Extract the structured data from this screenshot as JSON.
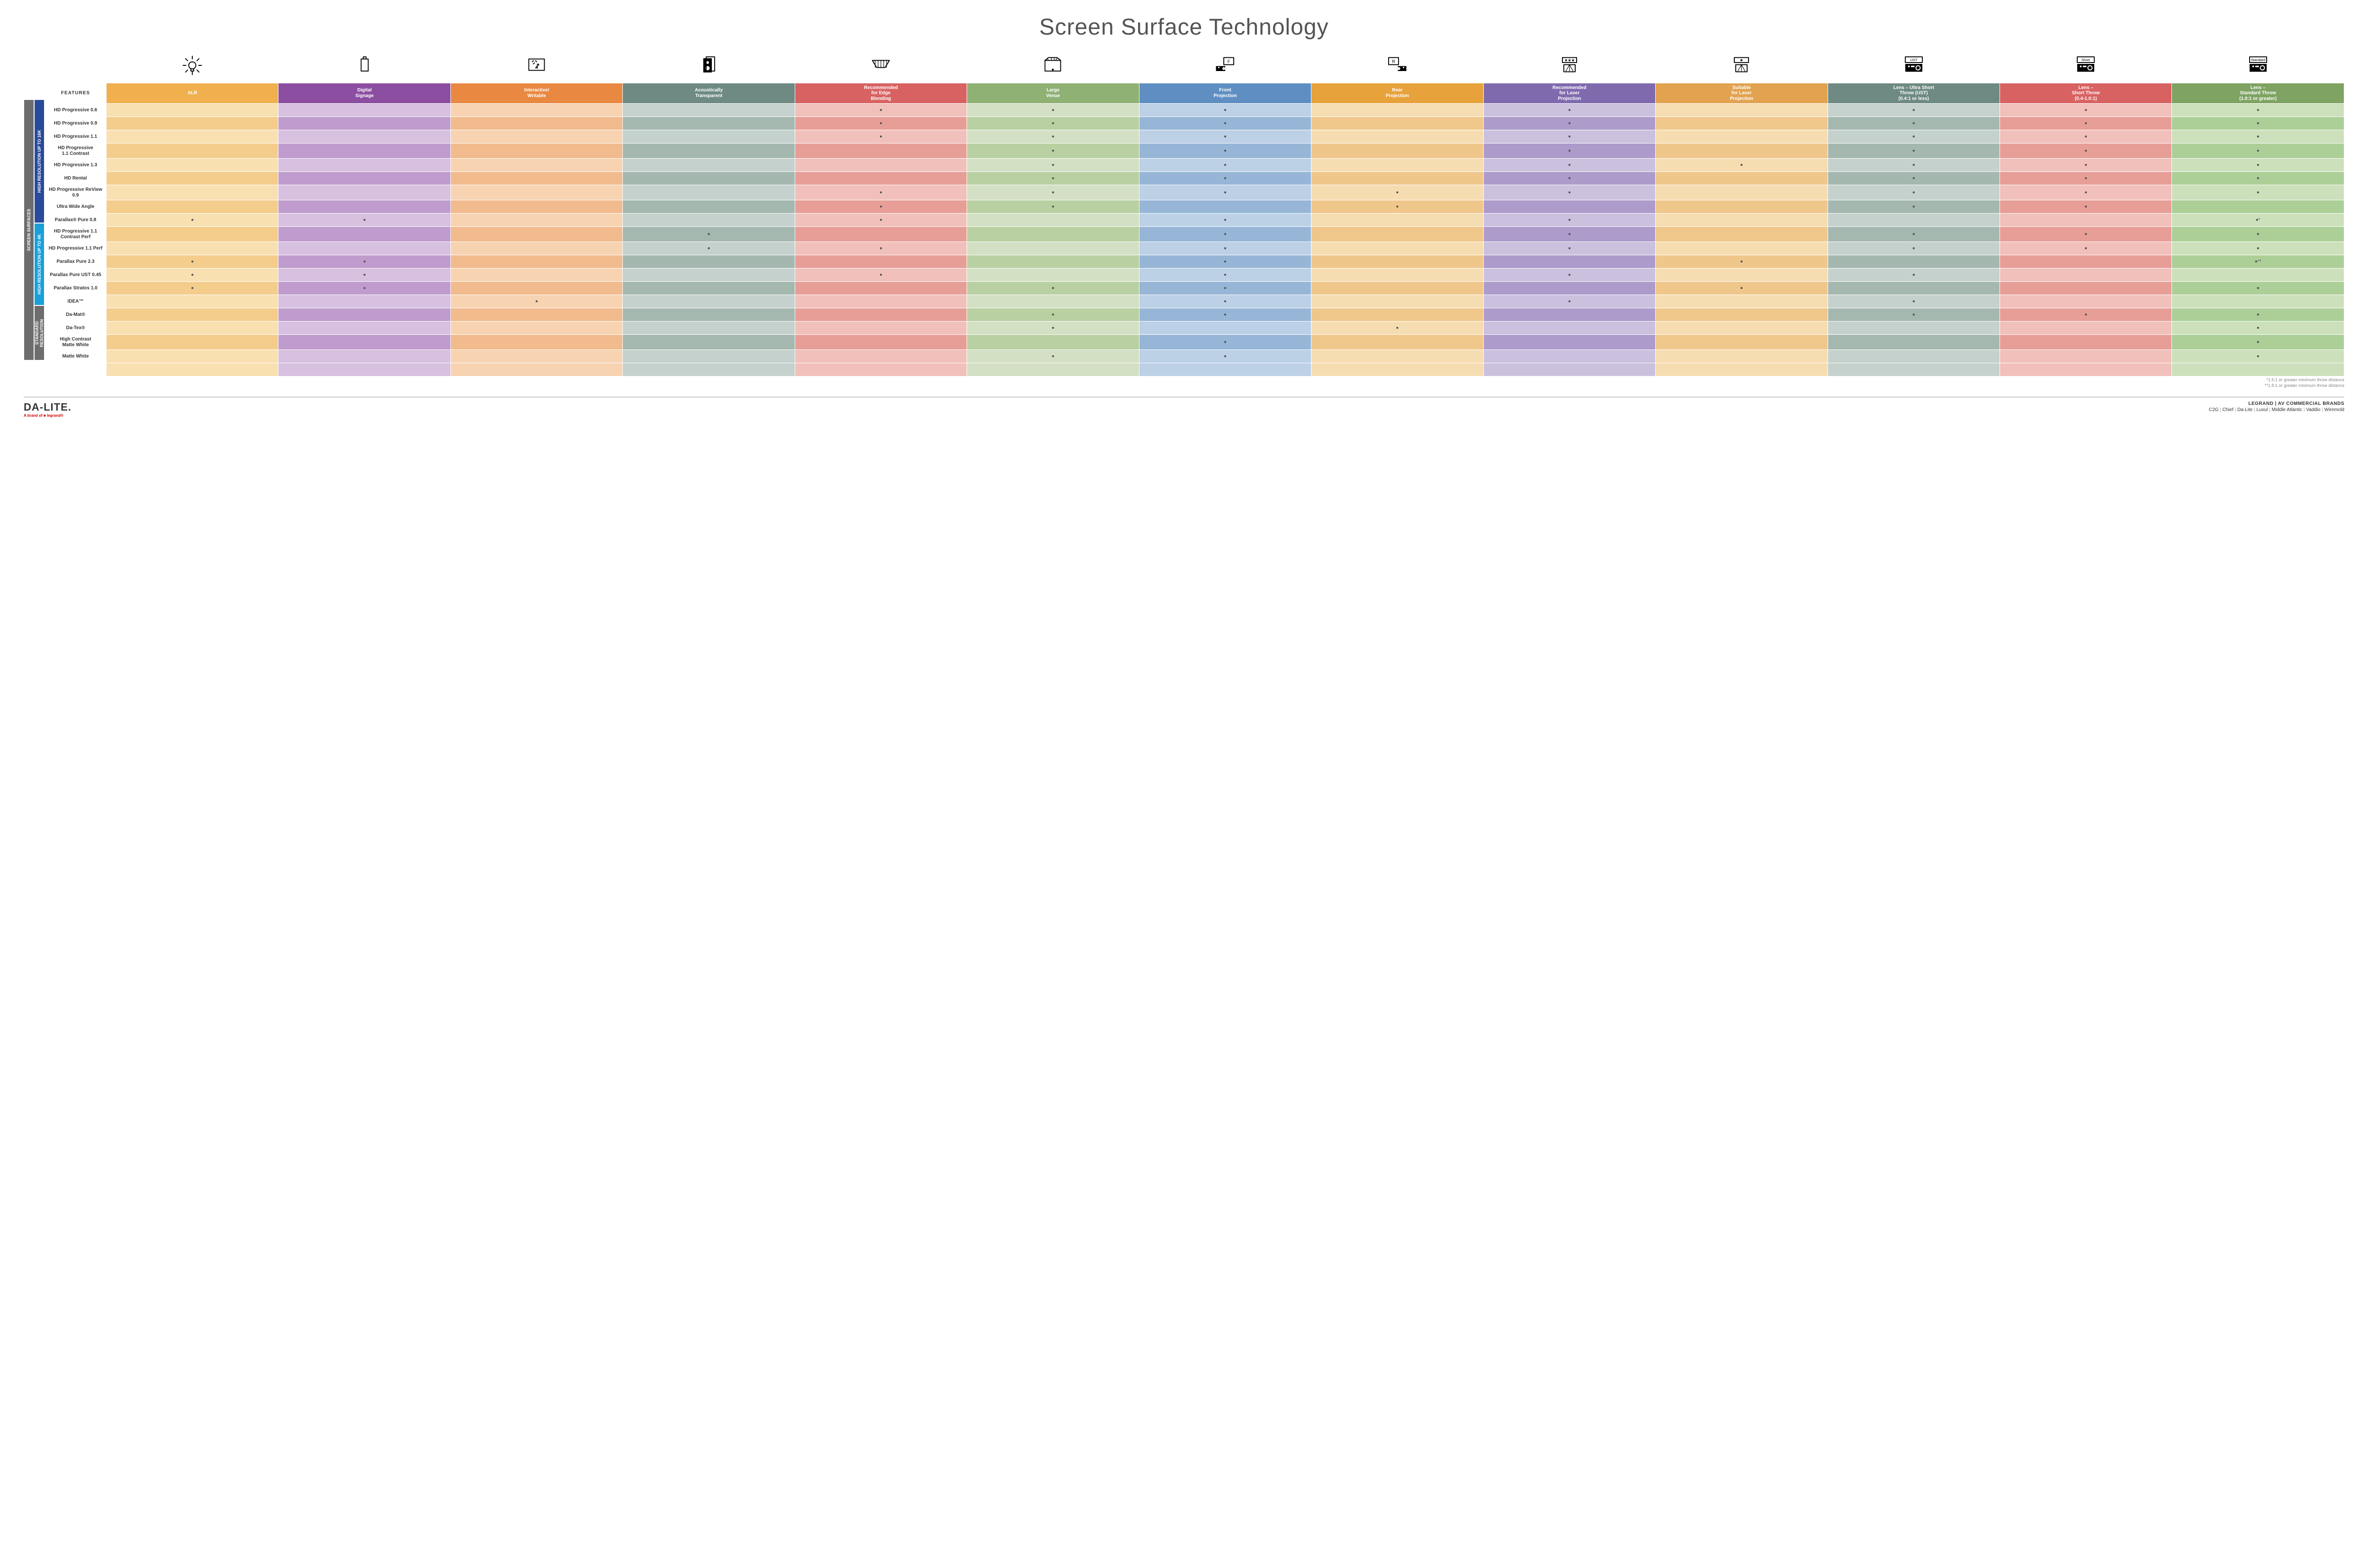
{
  "title": "Screen Surface Technology",
  "colors": {
    "col": [
      "#efb04d",
      "#8b4ea0",
      "#e98841",
      "#6e8a82",
      "#d86262",
      "#8fb174",
      "#5f8fc2",
      "#e7a23b",
      "#7f6aae",
      "#e2a24f",
      "#6e8a82",
      "#d86262",
      "#7ea362"
    ],
    "col_light": [
      "#f9e0b1",
      "#d7c0e0",
      "#f7d3b2",
      "#c5d1cc",
      "#f1c0bb",
      "#d3e0c4",
      "#bcd0e6",
      "#f6ddb1",
      "#cbc1de",
      "#f6ddb1",
      "#c5d1cc",
      "#f1c0bb",
      "#cde0bc"
    ],
    "col_mid": [
      "#f4cd8c",
      "#bf9ccd",
      "#f1bb8d",
      "#a5b8b0",
      "#e79e97",
      "#b9d0a2",
      "#97b6d7",
      "#f0c78b",
      "#ac9bcb",
      "#f0c78b",
      "#a5b8b0",
      "#e79e97",
      "#accf97"
    ],
    "side_outer": "#6d6d6d",
    "side_16k": "#2a4b9b",
    "side_4k": "#1aa0d8",
    "side_std": "#6d6d6d"
  },
  "columns": [
    {
      "label": "ALR",
      "icon": "bulb"
    },
    {
      "label": "Digital\nSignage",
      "icon": "signage"
    },
    {
      "label": "Interactive/\nWritable",
      "icon": "touch"
    },
    {
      "label": "Acoustically\nTransparent",
      "icon": "speaker"
    },
    {
      "label": "Recommended\nfor Edge\nBlending",
      "icon": "blend"
    },
    {
      "label": "Large\nVenue",
      "icon": "venue"
    },
    {
      "label": "Front\nProjection",
      "icon": "front"
    },
    {
      "label": "Rear\nProjection",
      "icon": "rear"
    },
    {
      "label": "Recommended\nfor Laser\nProjection",
      "icon": "laser3"
    },
    {
      "label": "Suitable\nfor Laser\nProjection",
      "icon": "laser1"
    },
    {
      "label": "Lens – Ultra Short\nThrow (UST)\n(0.4:1 or less)",
      "icon": "ust"
    },
    {
      "label": "Lens –\nShort Throw\n(0.4-1.0:1)",
      "icon": "short"
    },
    {
      "label": "Lens –\nStandard Throw\n(1.0:1 or greater)",
      "icon": "standard"
    }
  ],
  "features_label": "FEATURES",
  "side": {
    "outer": "SCREEN SURFACES",
    "groups": [
      {
        "label": "HIGH RESOLUTION UP TO 16K",
        "rows": 9,
        "color_key": "side_16k"
      },
      {
        "label": "HIGH RESOLUTION UP TO 4K",
        "rows": 6,
        "color_key": "side_4k"
      },
      {
        "label": "STANDARD\nRESOLUTION",
        "rows": 4,
        "color_key": "side_std"
      }
    ]
  },
  "rows": [
    {
      "label": "HD Progressive 0.6",
      "dots": [
        0,
        0,
        0,
        0,
        1,
        1,
        1,
        0,
        1,
        0,
        1,
        1,
        1
      ]
    },
    {
      "label": "HD Progressive 0.9",
      "dots": [
        0,
        0,
        0,
        0,
        1,
        1,
        1,
        0,
        1,
        0,
        1,
        1,
        1
      ]
    },
    {
      "label": "HD Progressive 1.1",
      "dots": [
        0,
        0,
        0,
        0,
        1,
        1,
        1,
        0,
        1,
        0,
        1,
        1,
        1
      ]
    },
    {
      "label": "HD Progressive\n1.1 Contrast",
      "dots": [
        0,
        0,
        0,
        0,
        0,
        1,
        1,
        0,
        1,
        0,
        1,
        1,
        1
      ]
    },
    {
      "label": "HD Progressive 1.3",
      "dots": [
        0,
        0,
        0,
        0,
        0,
        1,
        1,
        0,
        1,
        1,
        1,
        1,
        1
      ]
    },
    {
      "label": "HD Rental",
      "dots": [
        0,
        0,
        0,
        0,
        0,
        1,
        1,
        0,
        1,
        0,
        1,
        1,
        1
      ]
    },
    {
      "label": "HD Progressive ReView 0.9",
      "dots": [
        0,
        0,
        0,
        0,
        1,
        1,
        1,
        1,
        1,
        0,
        1,
        1,
        1
      ]
    },
    {
      "label": "Ultra Wide Angle",
      "dots": [
        0,
        0,
        0,
        0,
        1,
        1,
        0,
        1,
        0,
        0,
        1,
        1,
        0
      ]
    },
    {
      "label": "Parallax® Pure 0.8",
      "dots": [
        1,
        1,
        0,
        0,
        1,
        0,
        1,
        0,
        1,
        0,
        0,
        0,
        "●*"
      ]
    },
    {
      "label": "HD Progressive 1.1\nContrast Perf",
      "dots": [
        0,
        0,
        0,
        1,
        0,
        0,
        1,
        0,
        1,
        0,
        1,
        1,
        1
      ]
    },
    {
      "label": "HD Progressive 1.1 Perf",
      "dots": [
        0,
        0,
        0,
        1,
        1,
        0,
        1,
        0,
        1,
        0,
        1,
        1,
        1
      ]
    },
    {
      "label": "Parallax Pure 2.3",
      "dots": [
        1,
        1,
        0,
        0,
        0,
        0,
        1,
        0,
        0,
        1,
        0,
        0,
        "●**"
      ]
    },
    {
      "label": "Parallax Pure UST 0.45",
      "dots": [
        1,
        1,
        0,
        0,
        1,
        0,
        1,
        0,
        1,
        0,
        1,
        0,
        0
      ]
    },
    {
      "label": "Parallax Stratos 1.0",
      "dots": [
        1,
        1,
        0,
        0,
        0,
        1,
        1,
        0,
        0,
        1,
        0,
        0,
        1
      ]
    },
    {
      "label": "IDEA™",
      "dots": [
        0,
        0,
        1,
        0,
        0,
        0,
        1,
        0,
        1,
        0,
        1,
        0,
        0
      ]
    },
    {
      "label": "Da-Mat®",
      "dots": [
        0,
        0,
        0,
        0,
        0,
        1,
        1,
        0,
        0,
        0,
        1,
        1,
        1
      ]
    },
    {
      "label": "Da-Tex®",
      "dots": [
        0,
        0,
        0,
        0,
        0,
        1,
        0,
        1,
        0,
        0,
        0,
        0,
        1
      ]
    },
    {
      "label": "High Contrast\nMatte White",
      "dots": [
        0,
        0,
        0,
        0,
        0,
        0,
        1,
        0,
        0,
        0,
        0,
        0,
        1
      ]
    },
    {
      "label": "Matte White",
      "dots": [
        0,
        0,
        0,
        0,
        0,
        1,
        1,
        0,
        0,
        0,
        0,
        0,
        1
      ]
    }
  ],
  "footnotes": [
    "*1.5:1 or greater minimum throw distance",
    "**1.8:1 or greater minimum throw distance"
  ],
  "footer": {
    "logo": "DA-LITE.",
    "logo_sub": "A brand of ■ legrand®",
    "brands_title": "LEGRAND | AV COMMERCIAL BRANDS",
    "brands": [
      "C2G",
      "Chief",
      "Da-Lite",
      "Luxul",
      "Middle Atlantic",
      "Vaddio",
      "Wiremold"
    ]
  }
}
